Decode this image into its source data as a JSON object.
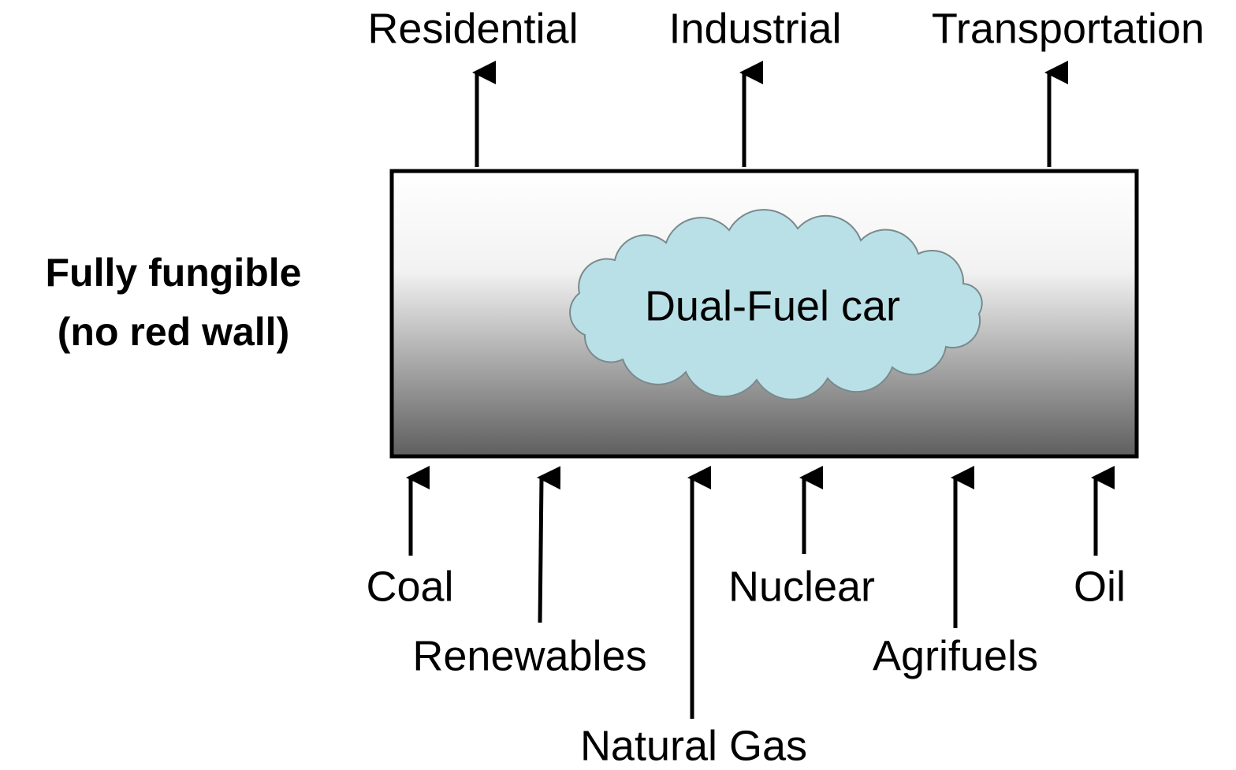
{
  "side_label": {
    "lines": [
      "Fully fungible",
      "(no red wall)"
    ]
  },
  "center": {
    "label": "Dual-Fuel car"
  },
  "outputs": [
    "Residential",
    "Industrial",
    "Transportation"
  ],
  "inputs": [
    "Coal",
    "Renewables",
    "Natural Gas",
    "Nuclear",
    "Agrifuels",
    "Oil"
  ]
}
